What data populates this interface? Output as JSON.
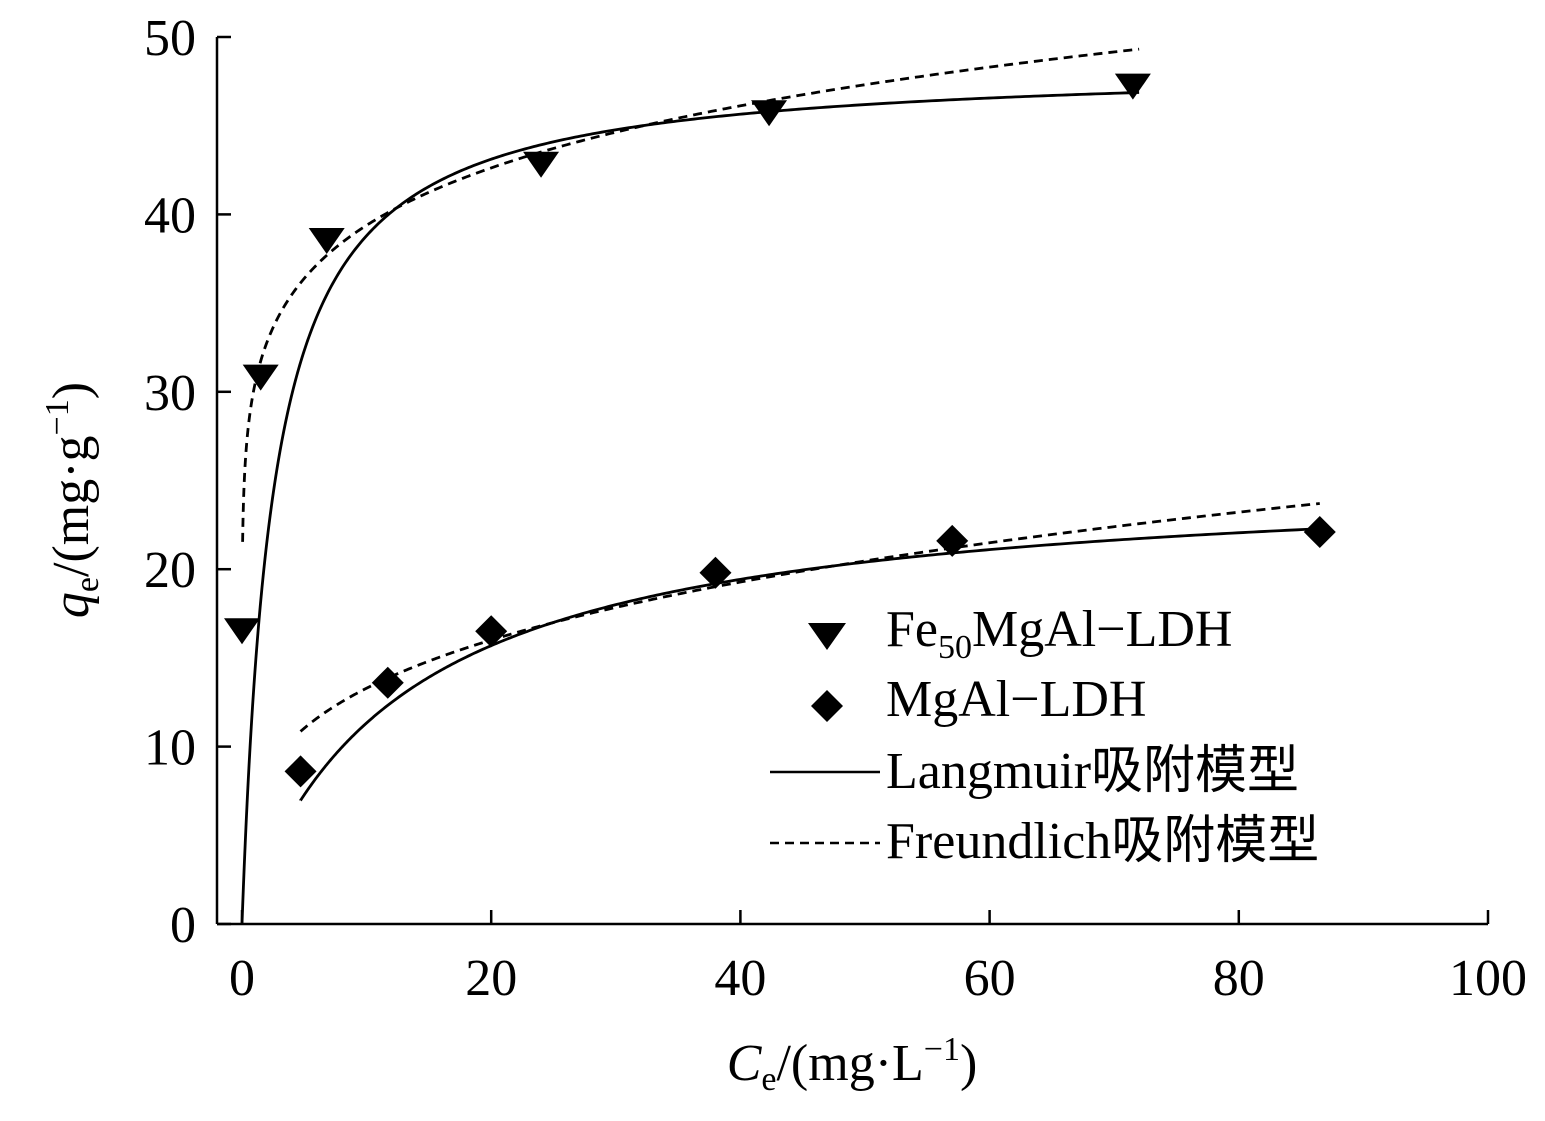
{
  "chart_data": {
    "type": "scatter",
    "xlabel_italic": "C",
    "xlabel_sub": "e",
    "xlabel_rest": "/(mg·L",
    "xlabel_sup": "−1",
    "xlabel_close": ")",
    "ylabel_italic": "q",
    "ylabel_sub": "e",
    "ylabel_rest": "/(mg·g",
    "ylabel_sup": "−1",
    "ylabel_close": ")",
    "xlim": [
      0,
      100
    ],
    "ylim": [
      0,
      50
    ],
    "xticks": [
      0,
      20,
      40,
      60,
      80,
      100
    ],
    "yticks": [
      0,
      10,
      20,
      30,
      40,
      50
    ],
    "xtick_labels": [
      "0",
      "20",
      "40",
      "60",
      "80",
      "100"
    ],
    "ytick_labels": [
      "0",
      "10",
      "20",
      "30",
      "40",
      "50"
    ],
    "legend_position": "right",
    "series": [
      {
        "name_main": "Fe",
        "name_sub": "50",
        "name_rest": "MgAl−LDH",
        "marker": "triangle-down",
        "x": [
          0,
          1.5,
          6.8,
          24,
          42.3,
          71.5
        ],
        "y": [
          16.5,
          30.8,
          38.5,
          42.8,
          45.7,
          47.2
        ]
      },
      {
        "name": "MgAl−LDH",
        "marker": "diamond",
        "x": [
          4.7,
          11.7,
          20,
          38,
          57,
          86.5
        ],
        "y": [
          8.6,
          13.6,
          16.5,
          19.8,
          21.6,
          22.1
        ]
      }
    ],
    "fits": [
      {
        "label": "Langmuir吸附模型",
        "style": "solid",
        "curves": [
          {
            "model": "langmuir",
            "qm": 48.5,
            "K": 0.4,
            "x_range": [
              0,
              72
            ]
          },
          {
            "model": "langmuir",
            "qm": 25.5,
            "K": 0.08,
            "x_range": [
              4.7,
              86.5
            ]
          }
        ]
      },
      {
        "label": "Freundlich吸附模型",
        "style": "dashed",
        "curves": [
          {
            "model": "freundlich",
            "Kf": 30.3,
            "n": 8.78,
            "x_range": [
              0.05,
              72
            ]
          },
          {
            "model": "freundlich",
            "Kf": 7.17,
            "n": 3.73,
            "x_range": [
              4.7,
              86.5
            ]
          }
        ]
      }
    ]
  }
}
